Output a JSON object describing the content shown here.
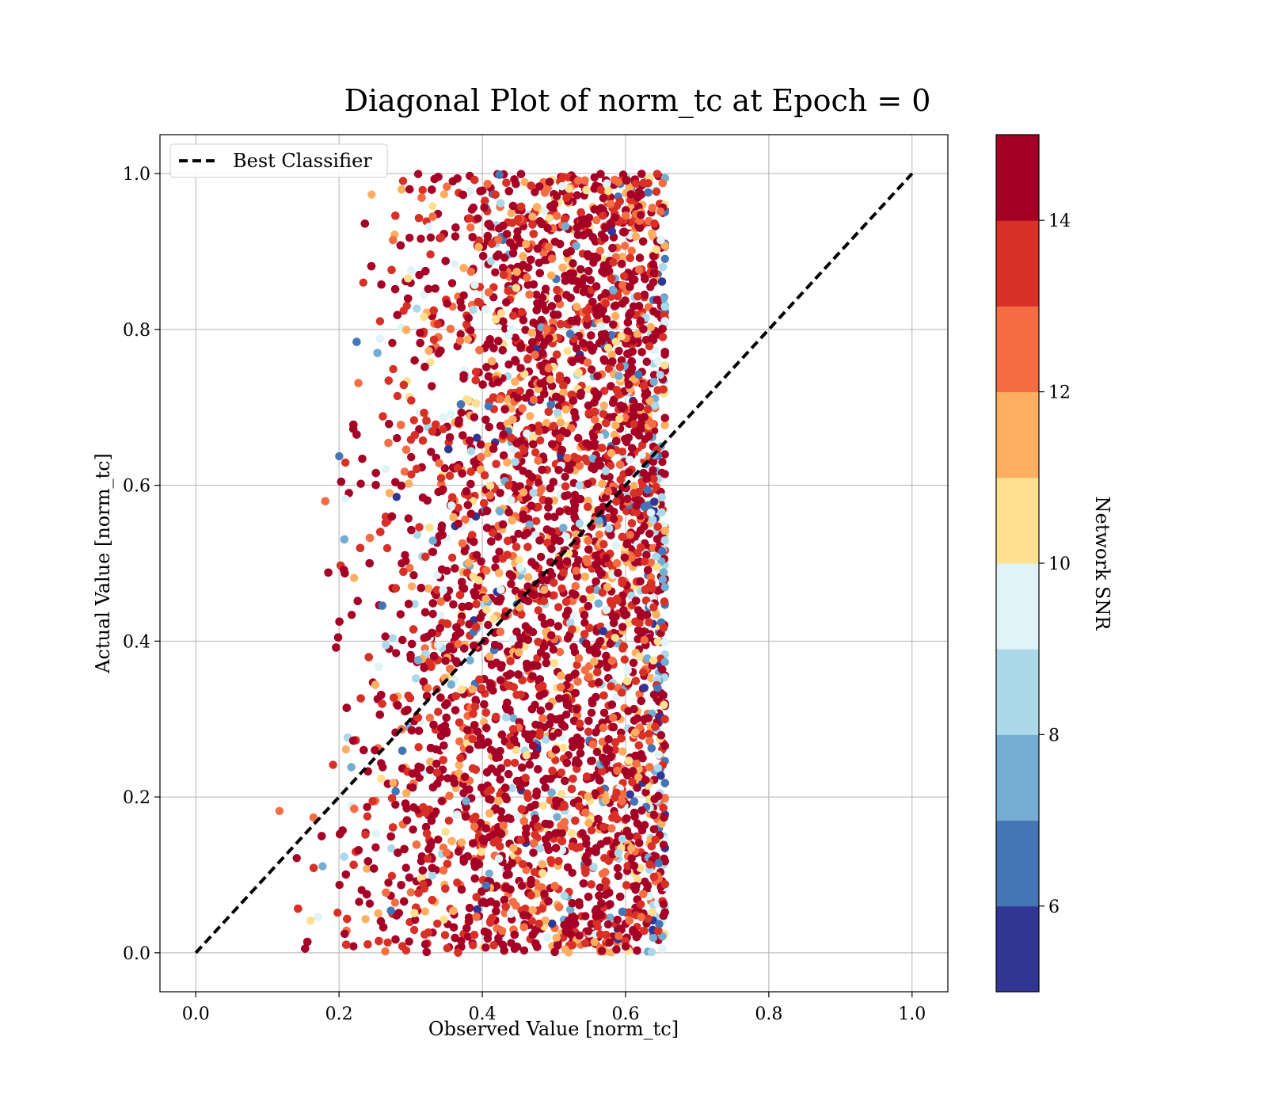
{
  "chart_data": {
    "type": "scatter",
    "title": "Diagonal Plot of norm_tc at Epoch = 0",
    "xlabel": "Observed Value [norm_tc]",
    "ylabel": "Actual Value [norm_tc]",
    "xlim": [
      -0.05,
      1.05
    ],
    "ylim": [
      -0.05,
      1.05
    ],
    "x_ticks": [
      "0.0",
      "0.2",
      "0.4",
      "0.6",
      "0.8",
      "1.0"
    ],
    "y_ticks": [
      "0.0",
      "0.2",
      "0.4",
      "0.6",
      "0.8",
      "1.0"
    ],
    "grid": true,
    "legend": {
      "location": "upper-left",
      "entries": [
        "Best Classifier"
      ]
    },
    "reference_line": {
      "name": "Best Classifier",
      "x": [
        0,
        1
      ],
      "y": [
        0,
        1
      ],
      "style": "dashed",
      "color": "#000000"
    },
    "colorbar": {
      "label": "Network SNR",
      "range": [
        5,
        15
      ],
      "ticks": [
        "6",
        "8",
        "10",
        "12",
        "14"
      ],
      "colors": [
        "#313695",
        "#4575b4",
        "#74add1",
        "#abd9e9",
        "#e0f3f8",
        "#fee090",
        "#fdae61",
        "#f46d43",
        "#d73027",
        "#a50026"
      ]
    },
    "scatter_summary": {
      "x_range": [
        0.07,
        0.66
      ],
      "y_range": [
        0.0,
        1.0
      ],
      "approx_point_count": 9000,
      "dominant_snr": 14.5
    }
  }
}
